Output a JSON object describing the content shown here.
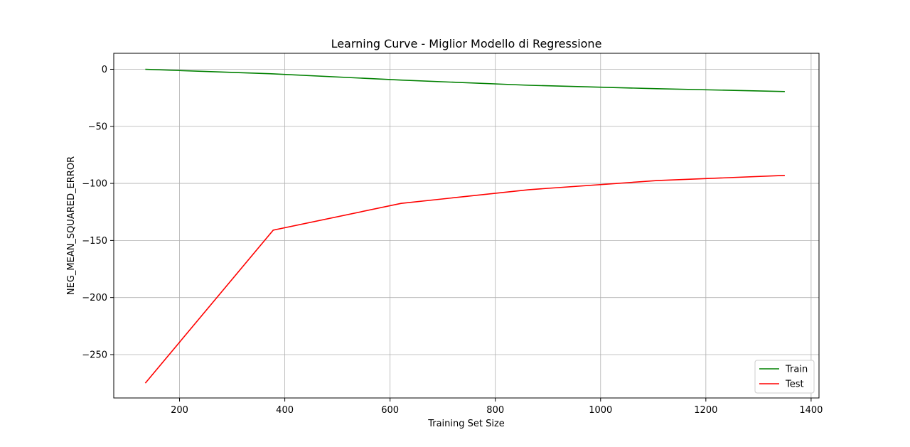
{
  "chart_data": {
    "type": "line",
    "title": "Learning Curve - Miglior Modello di Regressione",
    "xlabel": "Training Set Size",
    "ylabel": "NEG_MEAN_SQUARED_ERROR",
    "xlim": [
      75,
      1415
    ],
    "ylim": [
      -288,
      14
    ],
    "xticks": [
      200,
      400,
      600,
      800,
      1000,
      1200,
      1400
    ],
    "yticks": [
      0,
      -50,
      -100,
      -150,
      -200,
      -250
    ],
    "xtick_labels": [
      "200",
      "400",
      "600",
      "800",
      "1000",
      "1200",
      "1400"
    ],
    "ytick_labels": [
      "0",
      "−50",
      "−100",
      "−150",
      "−200",
      "−250"
    ],
    "grid": true,
    "legend_position": "bottom-right",
    "x": [
      135,
      378,
      621,
      864,
      1107,
      1350
    ],
    "series": [
      {
        "name": "Train",
        "color": "#008000",
        "values": [
          0,
          -4,
          -9.5,
          -14,
          -17,
          -19.5
        ]
      },
      {
        "name": "Test",
        "color": "#ff0000",
        "values": [
          -275,
          -141,
          -117.5,
          -105.5,
          -97.5,
          -93
        ]
      }
    ]
  }
}
